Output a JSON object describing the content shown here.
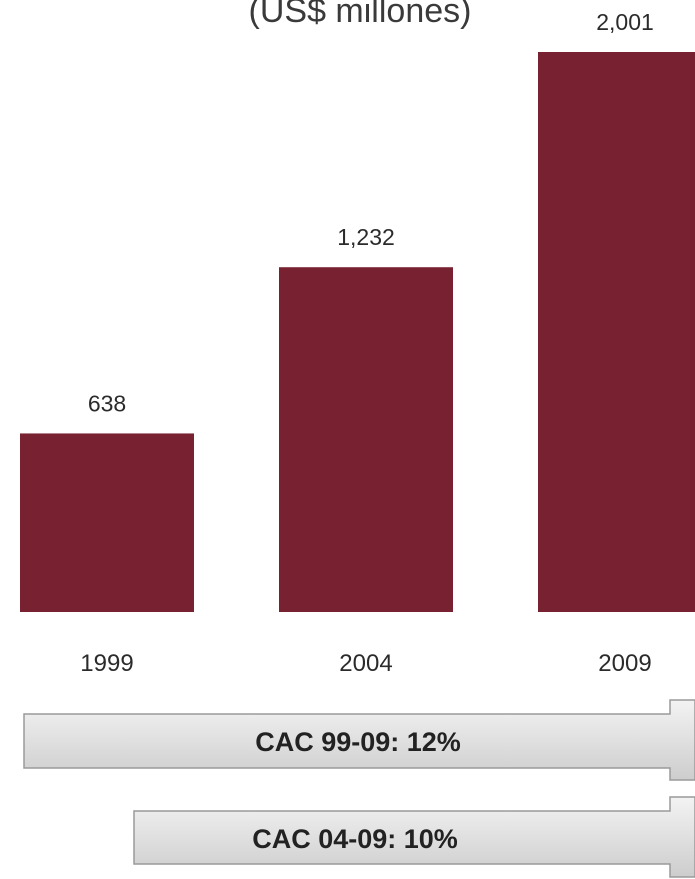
{
  "chart_data": {
    "type": "bar",
    "title": "(US$ millones)",
    "categories": [
      "1999",
      "2004",
      "2009"
    ],
    "values": [
      638,
      1232,
      2001
    ],
    "value_labels": [
      "638",
      "1,232",
      "2,001"
    ],
    "ylim": [
      0,
      2001
    ],
    "grid": false,
    "legend": "none",
    "bar_color": "#782130",
    "annotations": [
      "CAC 99-09: 12%",
      "CAC 04-09: 10%"
    ]
  }
}
